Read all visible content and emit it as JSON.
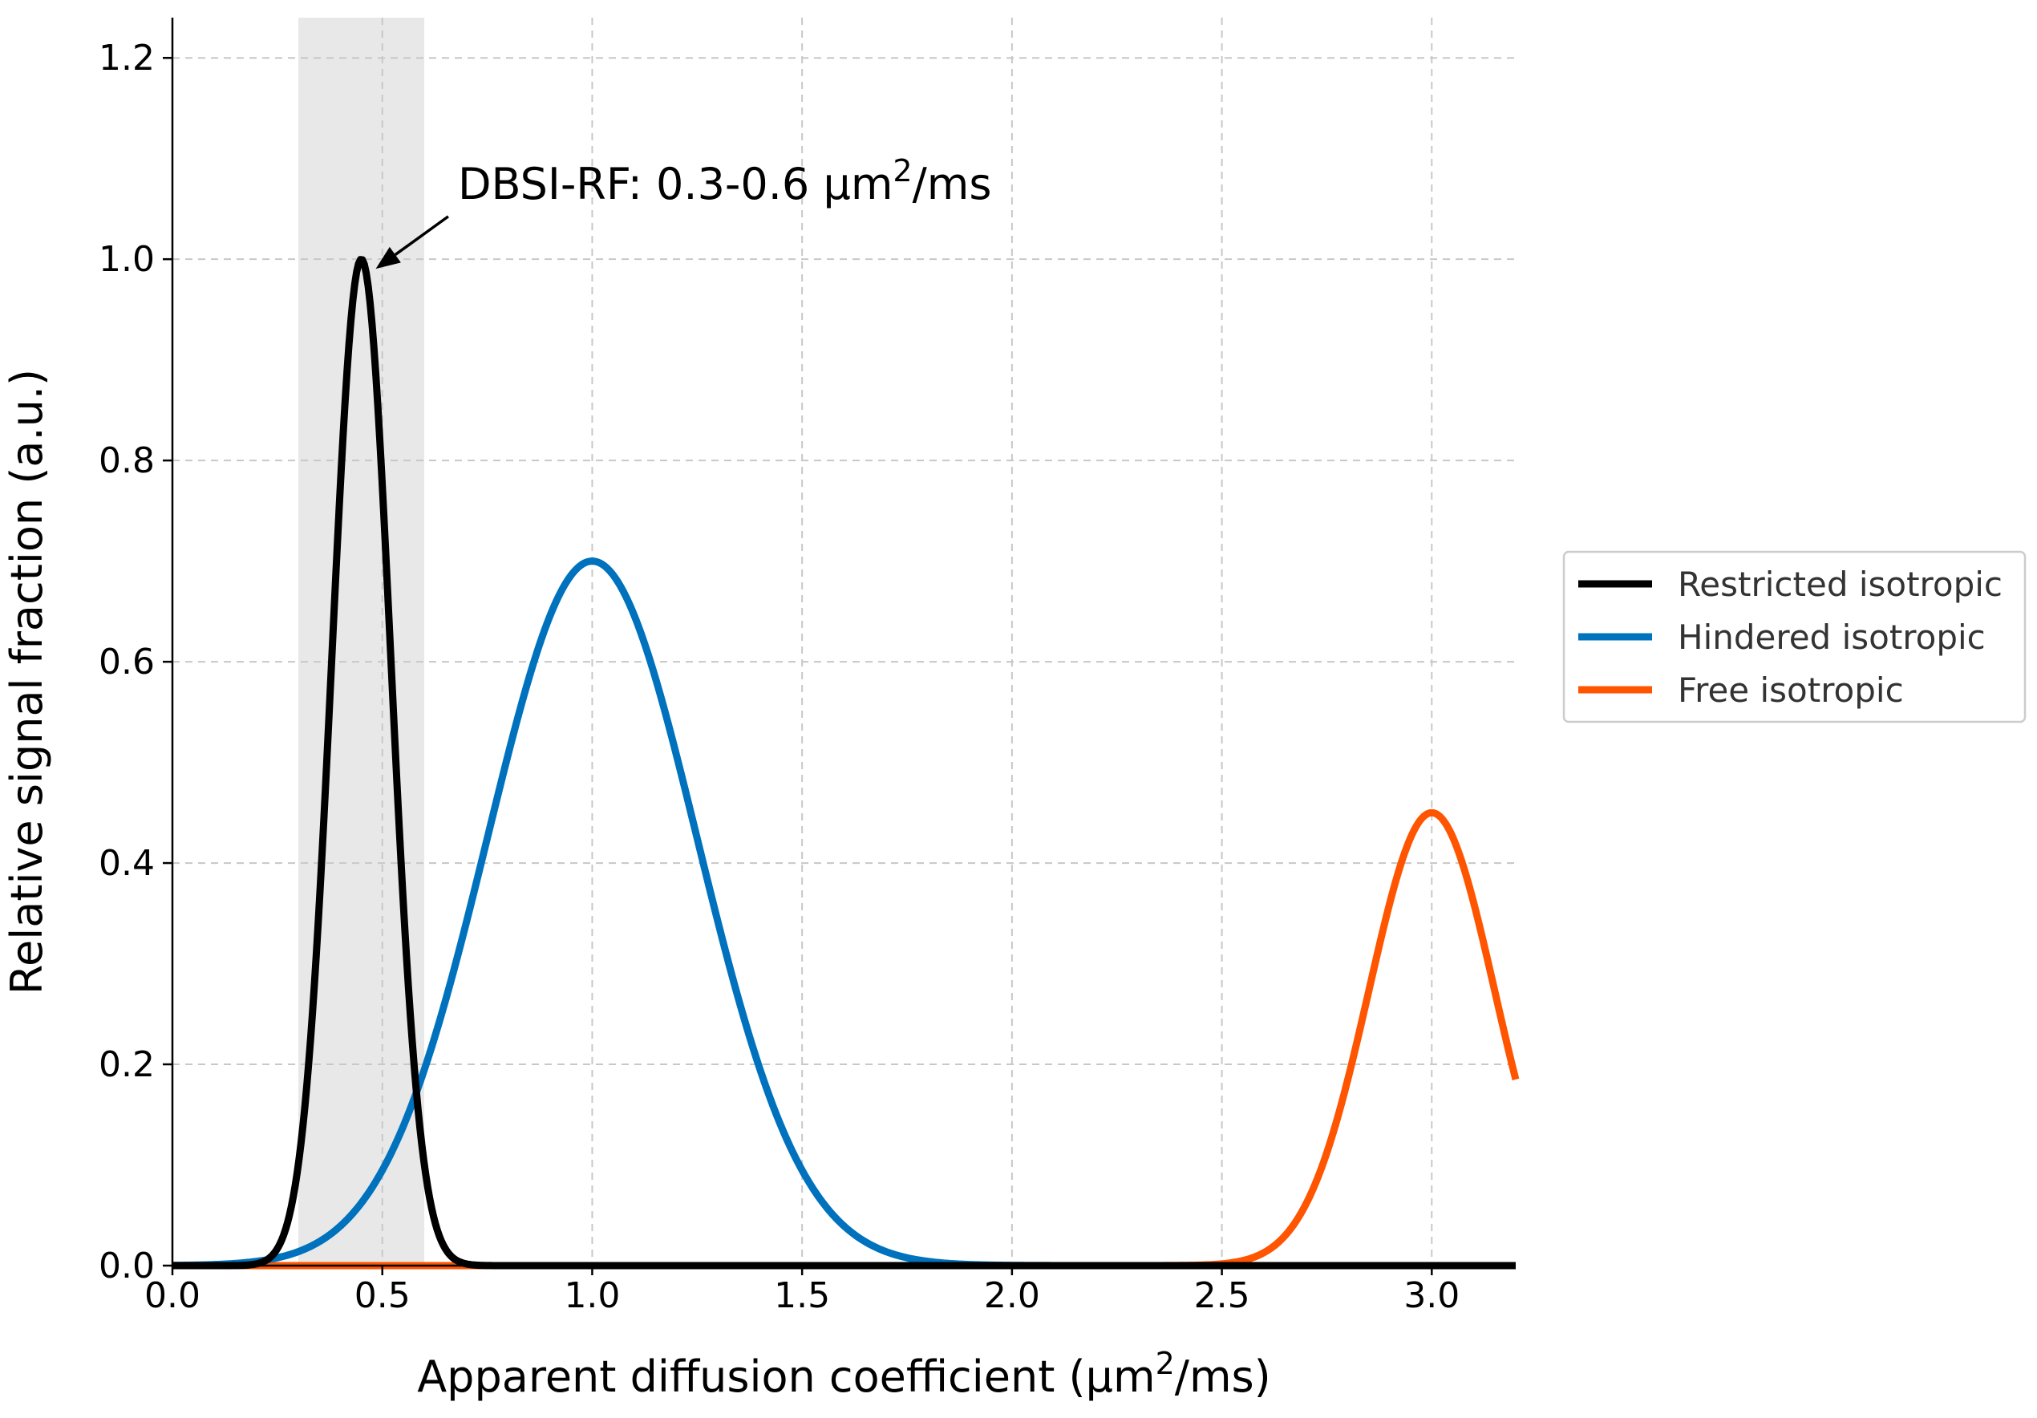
{
  "chart_data": {
    "type": "line",
    "title": "",
    "xlabel_prefix": "Apparent diffusion coefficient (µm",
    "xlabel_sup": "2",
    "xlabel_suffix": "/ms)",
    "ylabel": "Relative signal fraction (a.u.)",
    "xlim": [
      0.0,
      3.2
    ],
    "ylim": [
      0.0,
      1.24
    ],
    "xticks": [
      0.0,
      0.5,
      1.0,
      1.5,
      2.0,
      2.5,
      3.0
    ],
    "xtick_labels": [
      "0.0",
      "0.5",
      "1.0",
      "1.5",
      "2.0",
      "2.5",
      "3.0"
    ],
    "yticks": [
      0.0,
      0.2,
      0.4,
      0.6,
      0.8,
      1.0,
      1.2
    ],
    "ytick_labels": [
      "0.0",
      "0.2",
      "0.4",
      "0.6",
      "0.8",
      "1.0",
      "1.2"
    ],
    "grid": true,
    "legend_position": "right-outside",
    "shaded_region": {
      "x_start": 0.3,
      "x_end": 0.6,
      "color": "#e8e8e8"
    },
    "annotation": {
      "text_prefix": "DBSI-RF: 0.3-0.6 µm",
      "text_sup": "2",
      "text_suffix": "/ms",
      "arrow_to_x": 0.45,
      "arrow_to_y": 1.0,
      "text_x": 0.68,
      "text_y": 1.06
    },
    "series": [
      {
        "name": "Restricted isotropic",
        "color": "#000000",
        "peak_x": 0.45,
        "peak_y": 1.0,
        "sigma": 0.07
      },
      {
        "name": "Hindered isotropic",
        "color": "#0072BD",
        "peak_x": 1.0,
        "peak_y": 0.7,
        "sigma": 0.25
      },
      {
        "name": "Free isotropic",
        "color": "#FF5500",
        "peak_x": 3.0,
        "peak_y": 0.45,
        "sigma": 0.15
      }
    ]
  }
}
